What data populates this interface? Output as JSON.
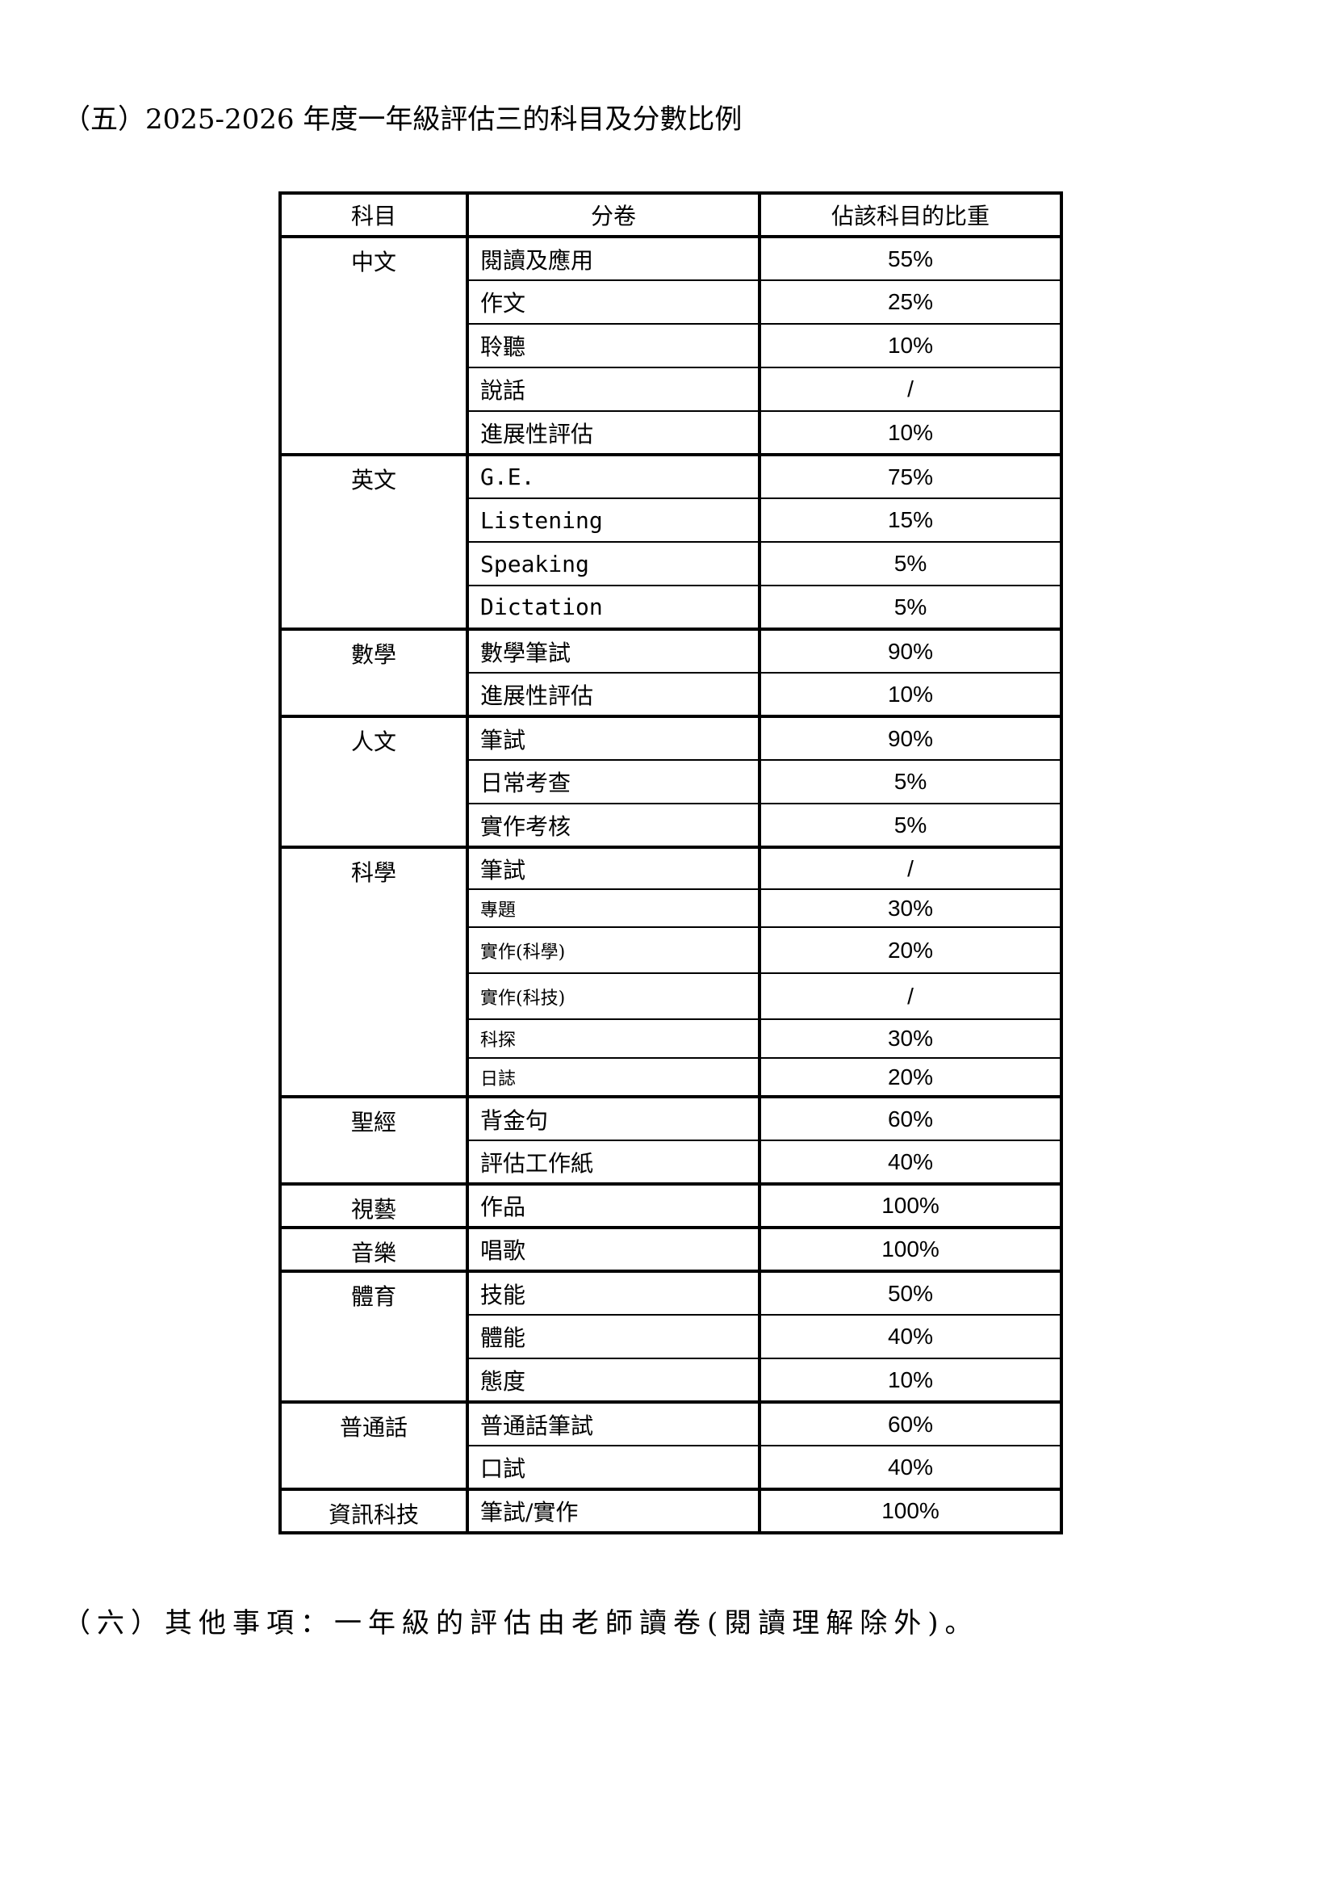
{
  "title": "（五）2025-2026 年度一年級評估三的科目及分數比例",
  "table": {
    "headers": [
      "科目",
      "分卷",
      "佔該科目的比重"
    ],
    "subjects": [
      {
        "name": "中文",
        "rows": [
          {
            "paper": "閱讀及應用",
            "weight": "55%"
          },
          {
            "paper": "作文",
            "weight": "25%"
          },
          {
            "paper": "聆聽",
            "weight": "10%"
          },
          {
            "paper": "說話",
            "weight": "/"
          },
          {
            "paper": "進展性評估",
            "weight": "10%"
          }
        ]
      },
      {
        "name": "英文",
        "rows": [
          {
            "paper": "G.E.",
            "weight": "75%"
          },
          {
            "paper": "Listening",
            "weight": "15%"
          },
          {
            "paper": "Speaking",
            "weight": "5%"
          },
          {
            "paper": "Dictation",
            "weight": "5%"
          }
        ]
      },
      {
        "name": "數學",
        "rows": [
          {
            "paper": "數學筆試",
            "weight": "90%"
          },
          {
            "paper": "進展性評估",
            "weight": "10%"
          }
        ]
      },
      {
        "name": "人文",
        "rows": [
          {
            "paper": "筆試",
            "weight": "90%"
          },
          {
            "paper": "日常考查",
            "weight": "5%"
          },
          {
            "paper": "實作考核",
            "weight": "5%"
          }
        ]
      },
      {
        "name": "科學",
        "rows": [
          {
            "paper": "筆試",
            "weight": "/"
          },
          {
            "paper": "專題",
            "weight": "30%"
          },
          {
            "paper": "實作(科學)",
            "weight": "20%"
          },
          {
            "paper": "實作(科技)",
            "weight": "/"
          },
          {
            "paper": "科探",
            "weight": "30%"
          },
          {
            "paper": "日誌",
            "weight": "20%"
          }
        ]
      },
      {
        "name": "聖經",
        "rows": [
          {
            "paper": "背金句",
            "weight": "60%"
          },
          {
            "paper": "評估工作紙",
            "weight": "40%"
          }
        ]
      },
      {
        "name": "視藝",
        "rows": [
          {
            "paper": "作品",
            "weight": "100%"
          }
        ]
      },
      {
        "name": "音樂",
        "rows": [
          {
            "paper": "唱歌",
            "weight": "100%"
          }
        ]
      },
      {
        "name": "體育",
        "rows": [
          {
            "paper": "技能",
            "weight": "50%"
          },
          {
            "paper": "體能",
            "weight": "40%"
          },
          {
            "paper": "態度",
            "weight": "10%"
          }
        ]
      },
      {
        "name": "普通話",
        "rows": [
          {
            "paper": "普通話筆試",
            "weight": "60%"
          },
          {
            "paper": "口試",
            "weight": "40%"
          }
        ]
      },
      {
        "name": "資訊科技",
        "rows": [
          {
            "paper": "筆試/實作",
            "weight": "100%"
          }
        ]
      }
    ]
  },
  "footnote": "（六）其他事項：一年級的評估由老師讀卷(閱讀理解除外)。"
}
